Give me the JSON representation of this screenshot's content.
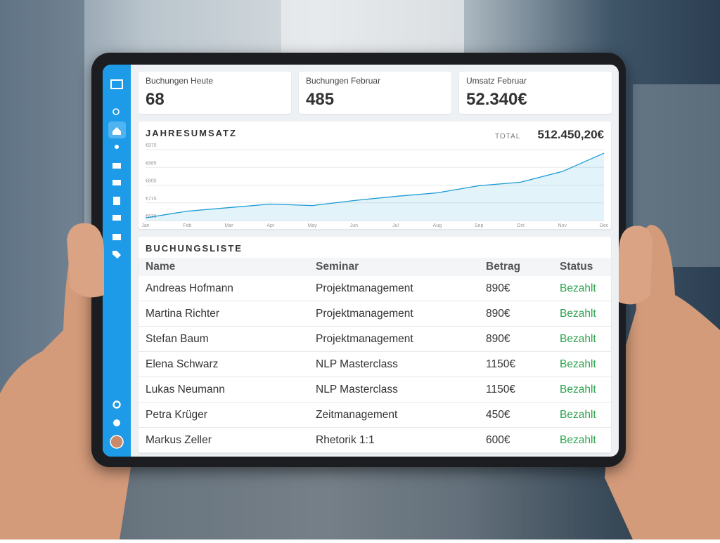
{
  "kpis": [
    {
      "label": "Buchungen Heute",
      "value": "68"
    },
    {
      "label": "Buchungen Februar",
      "value": "485"
    },
    {
      "label": "Umsatz Februar",
      "value": "52.340€"
    }
  ],
  "chart_data": {
    "type": "line",
    "title": "JAHRESUMSATZ",
    "total_label": "TOTAL",
    "total": "512.450,20€",
    "categories": [
      "Jan",
      "Feb",
      "Mar",
      "Apr",
      "May",
      "Jun",
      "Jul",
      "Aug",
      "Sep",
      "Oct",
      "Nov",
      "Dec"
    ],
    "values": [
      643,
      675,
      692,
      709,
      702,
      726,
      746,
      763,
      797,
      814,
      865,
      953
    ],
    "color": "#1a9ad6",
    "ylim": [
      630,
      970
    ],
    "yticks": [
      {
        "value": 630,
        "label": "€630"
      },
      {
        "value": 715,
        "label": "€715"
      },
      {
        "value": 800,
        "label": "€800"
      },
      {
        "value": 885,
        "label": "€885"
      },
      {
        "value": 970,
        "label": "€970"
      }
    ],
    "grid": true
  },
  "table": {
    "title": "BUCHUNGSLISTE",
    "columns": [
      "Name",
      "Seminar",
      "Betrag",
      "Status"
    ],
    "rows": [
      [
        "Andreas Hofmann",
        "Projektmanagement",
        "890€",
        "Bezahlt"
      ],
      [
        "Martina Richter",
        "Projektmanagement",
        "890€",
        "Bezahlt"
      ],
      [
        "Stefan Baum",
        "Projektmanagement",
        "890€",
        "Bezahlt"
      ],
      [
        "Elena Schwarz",
        "NLP Masterclass",
        "1150€",
        "Bezahlt"
      ],
      [
        "Lukas Neumann",
        "NLP Masterclass",
        "1150€",
        "Bezahlt"
      ],
      [
        "Petra Krüger",
        "Zeitmanagement",
        "450€",
        "Bezahlt"
      ],
      [
        "Markus Zeller",
        "Rhetorik 1:1",
        "600€",
        "Bezahlt"
      ]
    ]
  }
}
